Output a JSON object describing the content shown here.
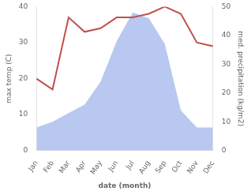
{
  "chart_data": {
    "type": "line",
    "categories": [
      "Jan",
      "Feb",
      "Mar",
      "Apr",
      "May",
      "Jun",
      "Jul",
      "Aug",
      "Sep",
      "Oct",
      "Nov",
      "Dec"
    ],
    "xlabel": "date (month)",
    "ylabel": "max temp (C)",
    "y2label": "med. precipitation (kg/m2)",
    "series": [
      {
        "type": "line",
        "color": "#c0504d",
        "values": [
          20,
          17,
          37,
          33,
          34,
          37,
          37,
          38,
          40,
          38,
          30,
          29
        ]
      },
      {
        "type": "area",
        "color": "#b8c8f0",
        "axis": "y2",
        "values": [
          8,
          10,
          13,
          16,
          24,
          38,
          48,
          46,
          37,
          14,
          8,
          8
        ]
      }
    ],
    "ylim": [
      0,
      40
    ],
    "yticks": [
      0,
      10,
      20,
      30,
      40
    ],
    "y2lim": [
      0,
      50
    ],
    "y2ticks": [
      0,
      10,
      20,
      30,
      40,
      50
    ],
    "grid": false
  }
}
